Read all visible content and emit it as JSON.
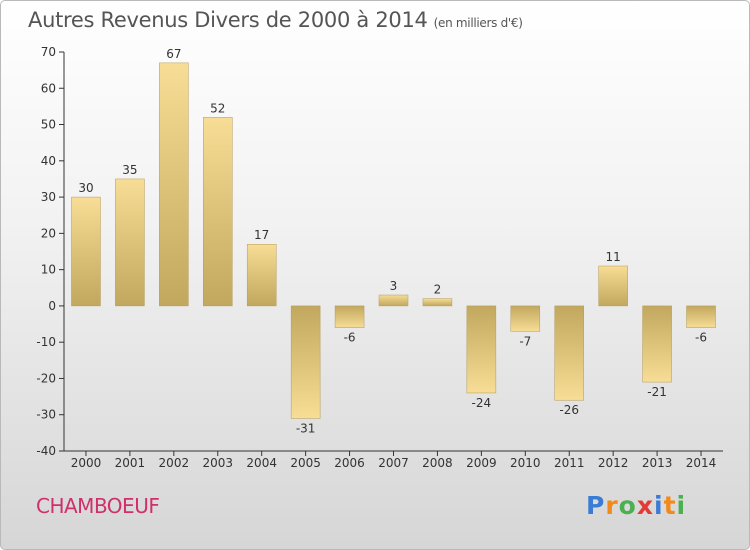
{
  "title": "Autres Revenus Divers de 2000 à 2014",
  "title_unit": "(en milliers d'€)",
  "commune": "CHAMBOEUF",
  "logo": {
    "text": "Proxiti",
    "letter_colors": [
      "#3a7bd5",
      "#f28a1a",
      "#4caf50",
      "#e53935",
      "#3a7bd5",
      "#f28a1a",
      "#4caf50"
    ]
  },
  "colors": {
    "bar_light": "#f7dd95",
    "bar_dark": "#c2a75e",
    "axis": "#333333",
    "grid": "#cccccc",
    "commune": "#d0306a"
  },
  "chart_data": {
    "type": "bar",
    "categories": [
      "2000",
      "2001",
      "2002",
      "2003",
      "2004",
      "2005",
      "2006",
      "2007",
      "2008",
      "2009",
      "2010",
      "2011",
      "2012",
      "2013",
      "2014"
    ],
    "values": [
      30,
      35,
      67,
      52,
      17,
      -31,
      -6,
      3,
      2,
      -24,
      -7,
      -26,
      11,
      -21,
      -6
    ],
    "value_labels": [
      "30",
      "35",
      "67",
      "52",
      "17",
      "-31",
      "-6",
      "3",
      "2",
      "-24",
      "-7",
      "-26",
      "11",
      "-21",
      "-6"
    ],
    "ylim": [
      -40,
      70
    ],
    "yticks": [
      70,
      60,
      50,
      40,
      30,
      20,
      10,
      0,
      -10,
      -20,
      -30,
      -40
    ],
    "ytick_labels": [
      "70",
      "60",
      "50",
      "40",
      "30",
      "20",
      "10",
      "0",
      "-10",
      "-20",
      "-30",
      "-40"
    ],
    "grid": false,
    "legend": "none"
  }
}
